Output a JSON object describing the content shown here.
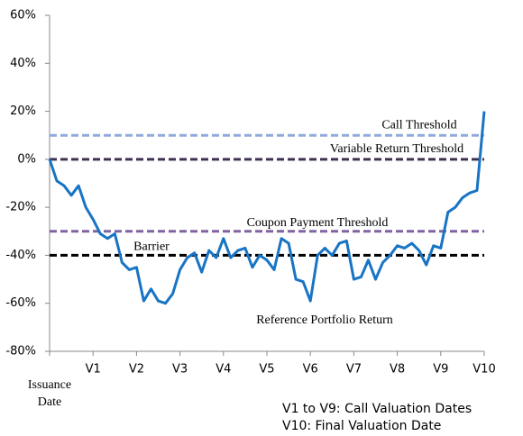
{
  "chart_data": {
    "type": "line",
    "x": [
      0,
      1,
      2,
      3,
      4,
      5,
      6,
      7,
      8,
      9,
      10,
      11,
      12,
      13,
      14,
      15,
      16,
      17,
      18,
      19,
      20,
      21,
      22,
      23,
      24,
      25,
      26,
      27,
      28,
      29,
      30,
      31,
      32,
      33,
      34,
      35,
      36,
      37,
      38,
      39,
      40,
      41,
      42,
      43,
      44,
      45,
      46,
      47,
      48,
      49,
      50,
      51,
      52,
      53,
      54,
      55,
      56,
      57,
      58,
      59,
      60
    ],
    "series": [
      {
        "name": "Reference Portfolio Return",
        "color": "#1874c4",
        "values": [
          0,
          -9,
          -11,
          -15,
          -11,
          -20,
          -25,
          -31,
          -33,
          -31,
          -43,
          -46,
          -45,
          -59,
          -54,
          -59,
          -60,
          -56,
          -46,
          -41,
          -39,
          -47,
          -38,
          -41,
          -33,
          -41,
          -38,
          -37,
          -45,
          -40,
          -42,
          -46,
          -33,
          -35,
          -50,
          -51,
          -59,
          -40,
          -37,
          -40,
          -35,
          -34,
          -50,
          -49,
          -42,
          -50,
          -43,
          -40,
          -36,
          -37,
          -35,
          -38,
          -44,
          -36,
          -37,
          -22,
          -20,
          -16,
          -14,
          -13,
          20
        ]
      }
    ],
    "xlim": [
      0,
      60
    ],
    "xticks": [
      {
        "value": 0,
        "label": "Issuance Date"
      },
      {
        "value": 6,
        "label": "V1"
      },
      {
        "value": 12,
        "label": "V2"
      },
      {
        "value": 18,
        "label": "V3"
      },
      {
        "value": 24,
        "label": "V4"
      },
      {
        "value": 30,
        "label": "V5"
      },
      {
        "value": 36,
        "label": "V6"
      },
      {
        "value": 42,
        "label": "V7"
      },
      {
        "value": 48,
        "label": "V8"
      },
      {
        "value": 54,
        "label": "V9"
      },
      {
        "value": 60,
        "label": "V10"
      }
    ],
    "ylim": [
      -80,
      60
    ],
    "yticks": [
      {
        "value": -80,
        "label": "-80%"
      },
      {
        "value": -60,
        "label": "-60%"
      },
      {
        "value": -40,
        "label": "-40%"
      },
      {
        "value": -20,
        "label": "-20%"
      },
      {
        "value": 0,
        "label": "0%"
      },
      {
        "value": 20,
        "label": "20%"
      },
      {
        "value": 40,
        "label": "40%"
      },
      {
        "value": 60,
        "label": "60%"
      }
    ],
    "reference_lines": [
      {
        "label": "Call Threshold",
        "value": 10,
        "color": "#8faadc"
      },
      {
        "label": "Variable Return Threshold",
        "value": 0,
        "color": "#3f3151"
      },
      {
        "label": "Coupon Payment Threshold",
        "value": -30,
        "color": "#8064a2"
      },
      {
        "label": "Barrier",
        "value": -40,
        "color": "#000000"
      }
    ],
    "notes": [
      "V1 to V9: Call Valuation Dates",
      "V10: Final Valuation Date"
    ]
  }
}
